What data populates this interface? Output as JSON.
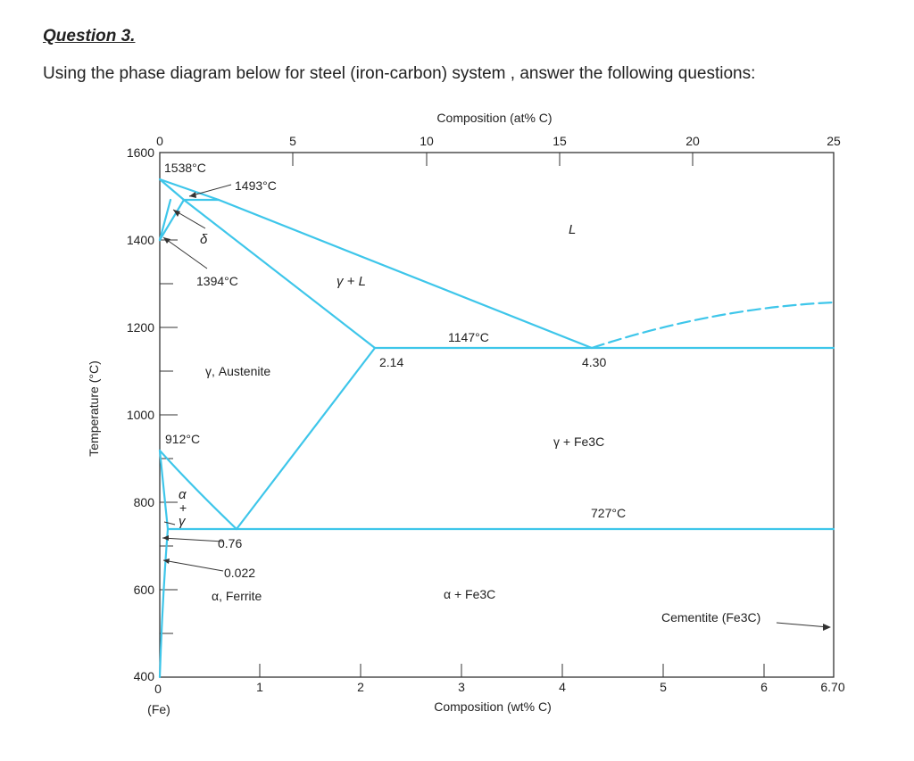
{
  "question": {
    "heading": "Question 3.",
    "text": "Using the phase diagram below for steel  (iron-carbon) system , answer the following questions:"
  },
  "diagram": {
    "top_axis_title": "Composition (at% C)",
    "bottom_axis_title": "Composition (wt% C)",
    "y_axis_title": "Temperature (°C)",
    "bottom_origin_note": "(Fe)",
    "colors": {
      "phase_lines": "#3ec6ea",
      "frame": "#333333",
      "text": "#222222"
    },
    "top_ticks": [
      "0",
      "5",
      "10",
      "15",
      "20",
      "25"
    ],
    "bottom_ticks": [
      "0",
      "1",
      "2",
      "3",
      "4",
      "5",
      "6",
      "6.70"
    ],
    "y_ticks": [
      "1600",
      "1400",
      "1200",
      "1000",
      "800",
      "600",
      "400"
    ],
    "labels": {
      "t1538": "1538°C",
      "t1493": "1493°C",
      "delta": "δ",
      "t1394": "1394°C",
      "gamma_L": "γ + L",
      "L": "L",
      "t1147": "1147°C",
      "c214": "2.14",
      "c430": "4.30",
      "austenite": "γ, Austenite",
      "t912": "912°C",
      "alpha_gamma_a": "α",
      "alpha_gamma_plus": "+",
      "alpha_gamma_g": "γ",
      "gamma_fe3c": "γ + Fe3C",
      "t727": "727°C",
      "c076": "0.76",
      "c0022": "0.022",
      "ferrite": "α, Ferrite",
      "alpha_fe3c": "α + Fe3C",
      "cementite": "Cementite (Fe3C)"
    }
  }
}
